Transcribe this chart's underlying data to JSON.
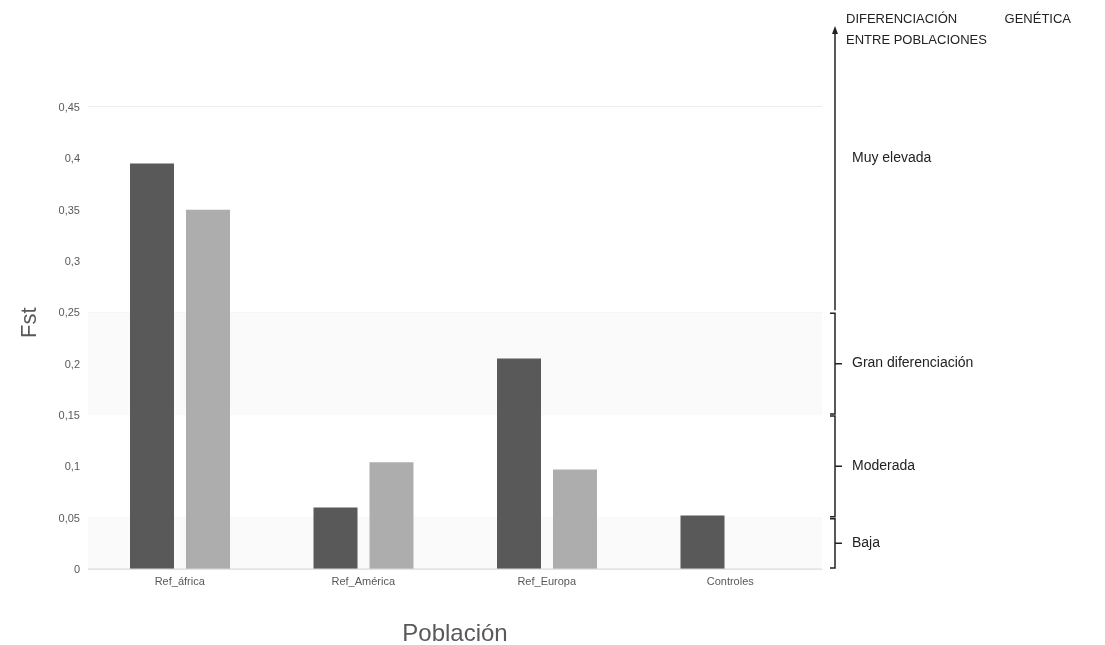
{
  "chart_data": {
    "type": "bar",
    "xlabel": "Población",
    "ylabel": "Fst",
    "categories": [
      "Ref_áfrica",
      "Ref_América",
      "Ref_Europa",
      "Controles"
    ],
    "series": [
      {
        "color": "#595959",
        "values": [
          0.395,
          0.06,
          0.205,
          0.052
        ]
      },
      {
        "color": "#adadad",
        "values": [
          0.35,
          0.104,
          0.097,
          null
        ]
      }
    ],
    "ylim": [
      0,
      0.45
    ],
    "yticks": [
      0,
      {
        "value": 0.05,
        "label": "0,05"
      },
      {
        "value": 0.1,
        "label": "0,1"
      },
      {
        "value": 0.15,
        "label": "0,15"
      },
      {
        "value": 0.2,
        "label": "0,2"
      },
      {
        "value": 0.25,
        "label": "0,25"
      },
      {
        "value": 0.3,
        "label": "0,3"
      },
      {
        "value": 0.35,
        "label": "0,35"
      },
      {
        "value": 0.4,
        "label": "0,4"
      },
      {
        "value": 0.45,
        "label": "0,45"
      }
    ],
    "grid": "y",
    "bands": [
      {
        "axis": "y",
        "from": 0,
        "to": 0.05,
        "label": "Baja",
        "color": "#fafafa"
      },
      {
        "axis": "y",
        "from": 0.05,
        "to": 0.15,
        "label": "Moderada",
        "color": "#ffffff"
      },
      {
        "axis": "y",
        "from": 0.15,
        "to": 0.25,
        "label": "Gran diferenciación",
        "color": "#fafafa"
      },
      {
        "axis": "y",
        "from": 0.25,
        "to": 0.45,
        "label": "Muy elevada",
        "color": "#ffffff"
      }
    ],
    "annotations": [
      "DIFERENCIACIÓN GENÉTICA ENTRE POBLACIONES"
    ]
  }
}
